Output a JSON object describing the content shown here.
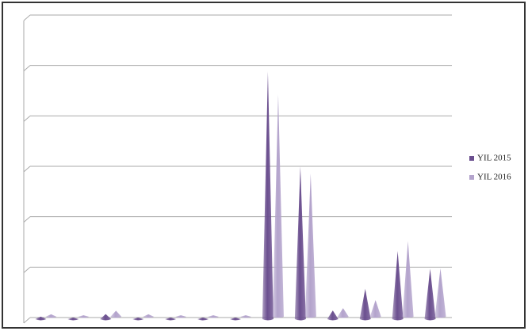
{
  "chart_data": {
    "type": "cone",
    "categories": [
      null,
      null,
      null,
      null,
      null,
      null,
      null,
      null,
      null,
      null,
      null,
      null,
      null
    ],
    "series": [
      {
        "name": "YIL 2015",
        "color": "#6b4f8f",
        "values": [
          0.05,
          0.03,
          0.1,
          0.03,
          0.03,
          0.03,
          0.03,
          4.91,
          3.03,
          0.17,
          0.6,
          1.35,
          1.0
        ]
      },
      {
        "name": "YIL 2016",
        "color": "#b3a3cc",
        "values": [
          0.05,
          0.03,
          0.12,
          0.05,
          0.03,
          0.03,
          0.03,
          4.41,
          2.84,
          0.17,
          0.33,
          1.5,
          0.96
        ]
      }
    ],
    "ylim": [
      0,
      6
    ],
    "yticks": [
      0,
      1,
      2,
      3,
      4,
      5,
      6
    ],
    "grid": true,
    "legend": "right"
  }
}
